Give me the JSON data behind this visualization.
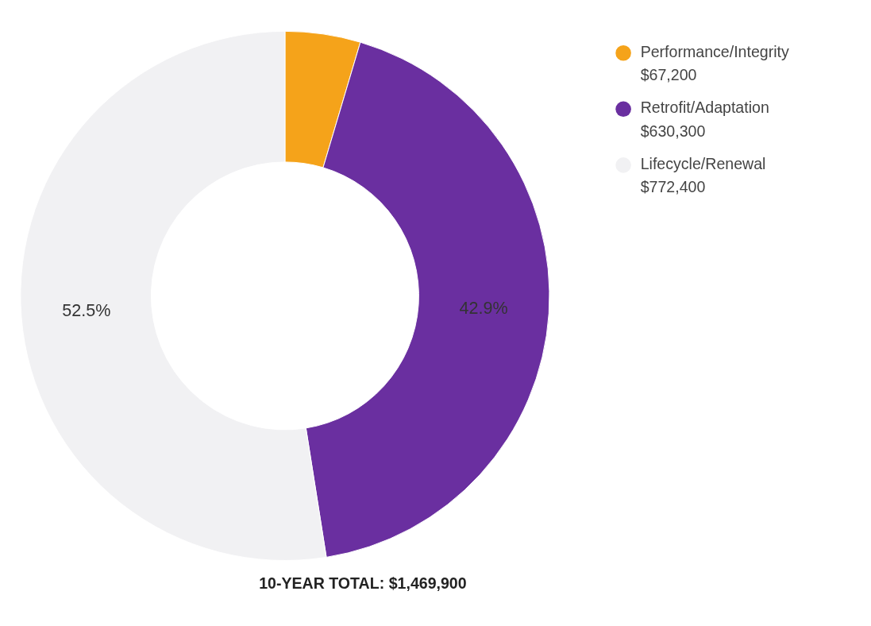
{
  "chart_data": {
    "type": "donut",
    "title": "10-YEAR TOTAL: $1,469,900",
    "categories": [
      "Performance/Integrity\n$67,200",
      "Retrofit/Adaptation\n$630,300",
      "Lifecycle/Renewal\n$772,400"
    ],
    "values": [
      4.6,
      42.9,
      52.5
    ],
    "colors": [
      "#f5a31a",
      "#6a2fa0",
      "#f1f1f3"
    ],
    "value_labels": [
      null,
      "42.9%",
      "52.5%"
    ],
    "legend": "top right"
  }
}
